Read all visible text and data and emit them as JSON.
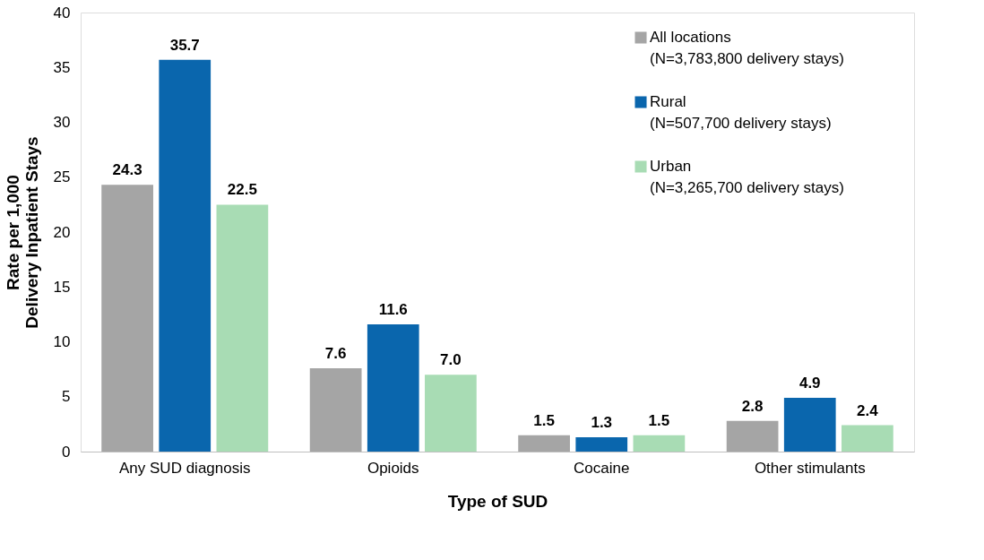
{
  "chart_data": {
    "type": "bar",
    "xlabel": "Type of  SUD",
    "ylabel": "Rate per 1,000\nDelivery Inpatient Stays",
    "categories": [
      "Any SUD diagnosis",
      "Opioids",
      "Cocaine",
      "Other stimulants"
    ],
    "series": [
      {
        "name": "All locations\n(N=3,783,800 delivery stays)",
        "color": "#a5a5a5",
        "values": [
          24.3,
          7.6,
          1.5,
          2.8
        ]
      },
      {
        "name": "Rural\n(N=507,700 delivery stays)",
        "color": "#0a66ad",
        "values": [
          35.7,
          11.6,
          1.3,
          4.9
        ]
      },
      {
        "name": "Urban\n(N=3,265,700 delivery stays)",
        "color": "#a8dcb4",
        "values": [
          22.5,
          7.0,
          1.5,
          2.4
        ]
      }
    ],
    "value_labels": [
      [
        "24.3",
        "7.6",
        "1.5",
        "2.8"
      ],
      [
        "35.7",
        "11.6",
        "1.3",
        "4.9"
      ],
      [
        "22.5",
        "7.0",
        "1.5",
        "2.4"
      ]
    ],
    "ylim": [
      0,
      40
    ],
    "yticks": [
      0,
      5,
      10,
      15,
      20,
      25,
      30,
      35,
      40
    ],
    "grid": false,
    "legend": "top right"
  }
}
